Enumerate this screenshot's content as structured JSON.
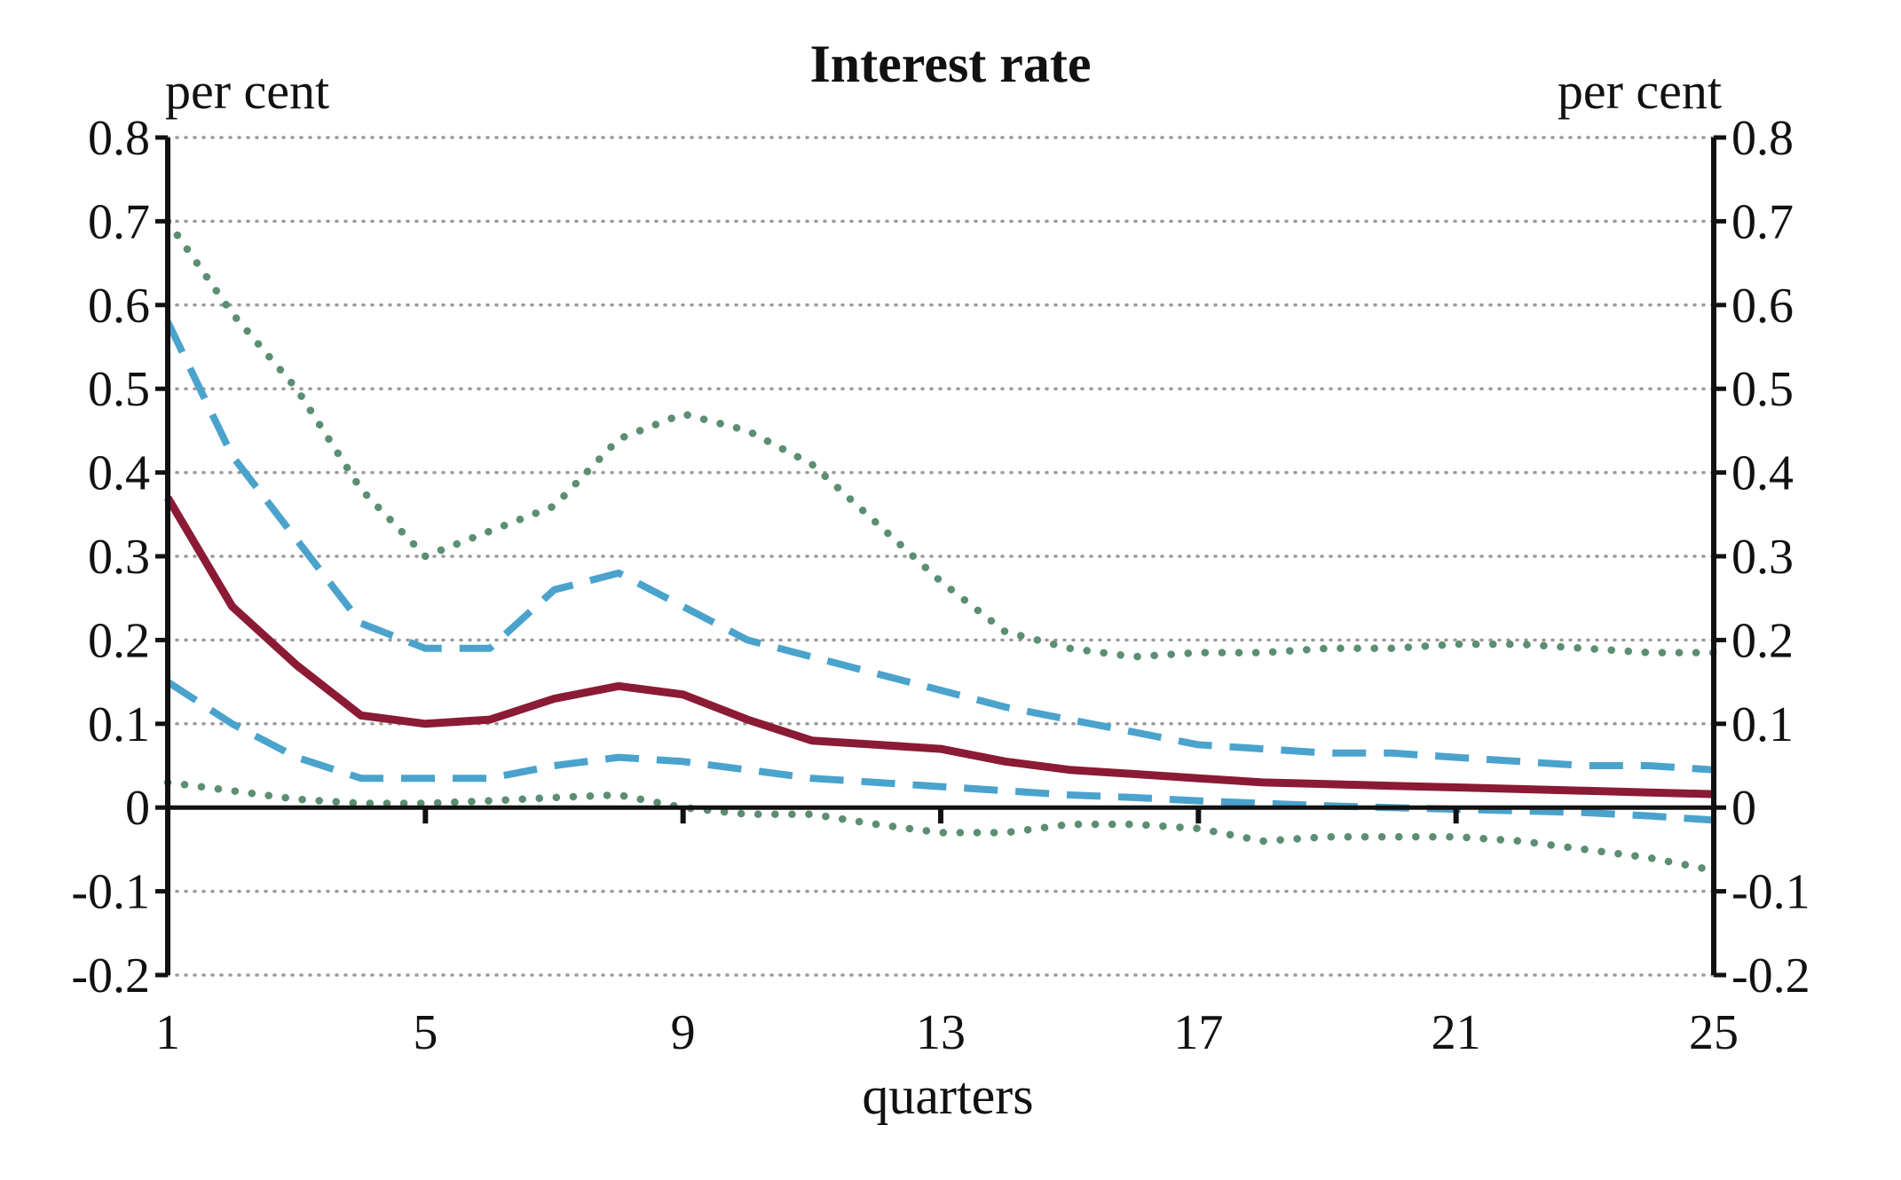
{
  "chart_data": {
    "type": "line",
    "title": "Interest rate",
    "xlabel": "quarters",
    "ylabel_left": "per cent",
    "ylabel_right": "per cent",
    "xlim": [
      1,
      25
    ],
    "ylim": [
      -0.2,
      0.8
    ],
    "x_ticks": [
      1,
      5,
      9,
      13,
      17,
      21,
      25
    ],
    "y_ticks": [
      -0.2,
      -0.1,
      0,
      0.1,
      0.2,
      0.3,
      0.4,
      0.5,
      0.6,
      0.7,
      0.8
    ],
    "y_tick_labels": [
      "-0.2",
      "-0.1",
      "0",
      "0.1",
      "0.2",
      "0.3",
      "0.4",
      "0.5",
      "0.6",
      "0.7",
      "0.8"
    ],
    "grid": true,
    "grid_style": "dotted horizontal",
    "legend": "none",
    "x": [
      1,
      2,
      3,
      4,
      5,
      6,
      7,
      8,
      9,
      10,
      11,
      12,
      13,
      14,
      15,
      16,
      17,
      18,
      19,
      20,
      21,
      22,
      23,
      24,
      25
    ],
    "series": [
      {
        "role": "outer-upper",
        "style": "dotted",
        "color": "#5b8e72",
        "values": [
          0.7,
          0.59,
          0.5,
          0.38,
          0.3,
          0.33,
          0.36,
          0.44,
          0.47,
          0.45,
          0.41,
          0.34,
          0.27,
          0.21,
          0.19,
          0.18,
          0.185,
          0.185,
          0.19,
          0.19,
          0.195,
          0.195,
          0.19,
          0.185,
          0.185
        ]
      },
      {
        "role": "inner-upper",
        "style": "dashed",
        "color": "#4aa3cc",
        "values": [
          0.58,
          0.42,
          0.32,
          0.22,
          0.19,
          0.19,
          0.26,
          0.28,
          0.24,
          0.2,
          0.18,
          0.16,
          0.14,
          0.12,
          0.105,
          0.09,
          0.075,
          0.07,
          0.065,
          0.065,
          0.06,
          0.055,
          0.05,
          0.05,
          0.045
        ]
      },
      {
        "role": "central",
        "style": "solid",
        "color": "#8b1a35",
        "values": [
          0.37,
          0.24,
          0.17,
          0.11,
          0.1,
          0.105,
          0.13,
          0.145,
          0.135,
          0.105,
          0.08,
          0.075,
          0.07,
          0.055,
          0.045,
          0.04,
          0.035,
          0.03,
          0.028,
          0.026,
          0.024,
          0.022,
          0.02,
          0.018,
          0.016
        ]
      },
      {
        "role": "inner-lower",
        "style": "dashed",
        "color": "#4aa3cc",
        "values": [
          0.15,
          0.1,
          0.06,
          0.035,
          0.035,
          0.035,
          0.05,
          0.06,
          0.055,
          0.045,
          0.035,
          0.03,
          0.025,
          0.02,
          0.015,
          0.012,
          0.008,
          0.005,
          0.002,
          0.0,
          -0.002,
          -0.004,
          -0.006,
          -0.01,
          -0.015
        ]
      },
      {
        "role": "outer-lower",
        "style": "dotted",
        "color": "#5b8e72",
        "values": [
          0.03,
          0.02,
          0.01,
          0.005,
          0.005,
          0.008,
          0.012,
          0.015,
          0.0,
          -0.008,
          -0.008,
          -0.02,
          -0.03,
          -0.03,
          -0.02,
          -0.02,
          -0.025,
          -0.04,
          -0.035,
          -0.035,
          -0.035,
          -0.04,
          -0.05,
          -0.06,
          -0.075
        ]
      }
    ]
  }
}
